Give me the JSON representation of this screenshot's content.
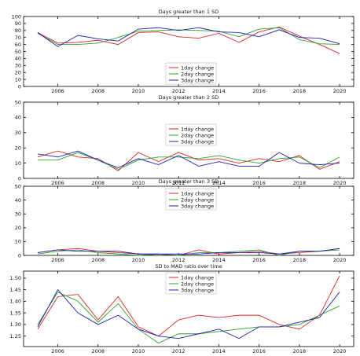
{
  "chart_data": [
    {
      "type": "line",
      "title": "Days greater than 1 SD",
      "x": [
        2005,
        2006,
        2007,
        2008,
        2009,
        2010,
        2011,
        2012,
        2013,
        2014,
        2015,
        2016,
        2017,
        2018,
        2019,
        2020
      ],
      "xticks": [
        "2006",
        "2008",
        "2010",
        "2012",
        "2014",
        "2016",
        "2018",
        "2020"
      ],
      "xlim": [
        2004.3,
        2020.7
      ],
      "ylim": [
        0,
        100
      ],
      "yticks": [
        "0",
        "10",
        "20",
        "30",
        "40",
        "50",
        "60",
        "70",
        "80",
        "90",
        "100"
      ],
      "legend_position": "bottom-center",
      "grid": false,
      "series": [
        {
          "name": "1day change",
          "color": "#d62728",
          "values": [
            77,
            62,
            63,
            66,
            60,
            77,
            78,
            71,
            69,
            76,
            63,
            78,
            85,
            72,
            60,
            47
          ]
        },
        {
          "name": "2day change",
          "color": "#2ca02c",
          "values": [
            76,
            60,
            60,
            62,
            70,
            79,
            80,
            81,
            80,
            79,
            71,
            82,
            84,
            67,
            61,
            60
          ]
        },
        {
          "name": "3day change",
          "color": "#1f1fb4",
          "values": [
            77,
            57,
            73,
            68,
            65,
            82,
            84,
            80,
            84,
            78,
            77,
            71,
            81,
            70,
            69,
            61
          ]
        }
      ]
    },
    {
      "type": "line",
      "title": "Days greater than 2 SD",
      "x": [
        2005,
        2006,
        2007,
        2008,
        2009,
        2010,
        2011,
        2012,
        2013,
        2014,
        2015,
        2016,
        2017,
        2018,
        2019,
        2020
      ],
      "xticks": [
        "2006",
        "2008",
        "2010",
        "2012",
        "2014",
        "2016",
        "2018",
        "2020"
      ],
      "xlim": [
        2004.3,
        2020.7
      ],
      "ylim": [
        0,
        50
      ],
      "yticks": [
        "0",
        "10",
        "20",
        "30",
        "40",
        "50"
      ],
      "legend_position": "center",
      "grid": false,
      "series": [
        {
          "name": "1day change",
          "color": "#d62728",
          "values": [
            14,
            18,
            14,
            13,
            5,
            17,
            11,
            17,
            12,
            13,
            10,
            13,
            11,
            15,
            6,
            11
          ]
        },
        {
          "name": "2day change",
          "color": "#2ca02c",
          "values": [
            12,
            12,
            17,
            12,
            6,
            12,
            14,
            14,
            13,
            15,
            12,
            10,
            13,
            14,
            7,
            14
          ]
        },
        {
          "name": "3day change",
          "color": "#1f1fb4",
          "values": [
            16,
            14,
            18,
            12,
            7,
            13,
            9,
            15,
            8,
            11,
            8,
            8,
            17,
            10,
            9,
            10
          ]
        }
      ]
    },
    {
      "type": "line",
      "title": "Days greater than 3 SD",
      "x": [
        2005,
        2006,
        2007,
        2008,
        2009,
        2010,
        2011,
        2012,
        2013,
        2014,
        2015,
        2016,
        2017,
        2018,
        2019,
        2020
      ],
      "xticks": [
        "2006",
        "2008",
        "2010",
        "2012",
        "2014",
        "2016",
        "2018",
        "2020"
      ],
      "xlim": [
        2004.3,
        2020.7
      ],
      "ylim": [
        0,
        50
      ],
      "yticks": [
        "0",
        "10",
        "20",
        "30",
        "40",
        "50"
      ],
      "legend_position": "top-center",
      "grid": false,
      "series": [
        {
          "name": "1day change",
          "color": "#d62728",
          "values": [
            2,
            4,
            5,
            3,
            2,
            1,
            1,
            0,
            4,
            1,
            2,
            3,
            1,
            2,
            3,
            5
          ]
        },
        {
          "name": "2day change",
          "color": "#2ca02c",
          "values": [
            1,
            3,
            4,
            2,
            1,
            0,
            1,
            0,
            2,
            2,
            3,
            4,
            0,
            3,
            3,
            4
          ]
        },
        {
          "name": "3day change",
          "color": "#1f1fb4",
          "values": [
            2,
            4,
            3,
            3,
            3,
            1,
            1,
            1,
            1,
            2,
            2,
            2,
            1,
            3,
            3,
            5
          ]
        }
      ]
    },
    {
      "type": "line",
      "title": "SD to MAD ratio over time",
      "x": [
        2005,
        2006,
        2007,
        2008,
        2009,
        2010,
        2011,
        2012,
        2013,
        2014,
        2015,
        2016,
        2017,
        2018,
        2019,
        2020
      ],
      "xticks": [
        "2006",
        "2008",
        "2010",
        "2012",
        "2014",
        "2016",
        "2018",
        "2020"
      ],
      "xlim": [
        2004.3,
        2020.7
      ],
      "ylim": [
        1.205,
        1.53
      ],
      "yticks": [
        "1.25",
        "1.30",
        "1.35",
        "1.40",
        "1.45",
        "1.50"
      ],
      "legend_position": "top-center",
      "grid": false,
      "series": [
        {
          "name": "1day change",
          "color": "#d62728",
          "values": [
            1.28,
            1.42,
            1.43,
            1.32,
            1.42,
            1.29,
            1.25,
            1.32,
            1.34,
            1.33,
            1.34,
            1.34,
            1.3,
            1.28,
            1.34,
            1.51
          ]
        },
        {
          "name": "2day change",
          "color": "#2ca02c",
          "values": [
            1.3,
            1.44,
            1.4,
            1.31,
            1.39,
            1.28,
            1.22,
            1.26,
            1.26,
            1.27,
            1.28,
            1.29,
            1.29,
            1.3,
            1.34,
            1.38
          ]
        },
        {
          "name": "3day change",
          "color": "#1f1fb4",
          "values": [
            1.29,
            1.45,
            1.35,
            1.3,
            1.34,
            1.28,
            1.25,
            1.24,
            1.26,
            1.28,
            1.24,
            1.29,
            1.29,
            1.31,
            1.33,
            1.44
          ]
        }
      ]
    }
  ]
}
